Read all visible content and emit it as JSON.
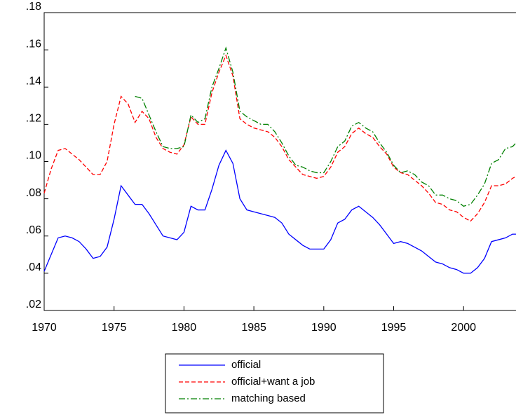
{
  "chart_data": {
    "type": "line",
    "x": [
      1970.0,
      1970.5,
      1971.0,
      1971.5,
      1972.0,
      1972.5,
      1973.0,
      1973.5,
      1974.0,
      1974.5,
      1975.0,
      1975.5,
      1976.0,
      1976.5,
      1977.0,
      1977.5,
      1978.0,
      1978.5,
      1979.0,
      1979.5,
      1980.0,
      1980.5,
      1981.0,
      1981.5,
      1982.0,
      1982.5,
      1983.0,
      1983.5,
      1984.0,
      1984.5,
      1985.0,
      1985.5,
      1986.0,
      1986.5,
      1987.0,
      1987.5,
      1988.0,
      1988.5,
      1989.0,
      1989.5,
      1990.0,
      1990.5,
      1991.0,
      1991.5,
      1992.0,
      1992.5,
      1993.0,
      1993.5,
      1994.0,
      1994.5,
      1995.0,
      1995.5,
      1996.0,
      1996.5,
      1997.0,
      1997.5,
      1998.0,
      1998.5,
      1999.0,
      1999.5,
      2000.0,
      2000.5,
      2001.0,
      2001.5,
      2002.0,
      2002.5,
      2003.0,
      2003.5,
      2003.75
    ],
    "series": [
      {
        "name": "official",
        "color": "#0000ff",
        "dash": "solid",
        "values": [
          0.041,
          0.05,
          0.059,
          0.06,
          0.059,
          0.057,
          0.053,
          0.048,
          0.049,
          0.054,
          0.069,
          0.087,
          0.082,
          0.077,
          0.077,
          0.072,
          0.066,
          0.06,
          0.059,
          0.058,
          0.062,
          0.076,
          0.074,
          0.074,
          0.085,
          0.098,
          0.106,
          0.099,
          0.08,
          0.074,
          0.073,
          0.072,
          0.071,
          0.07,
          0.067,
          0.061,
          0.058,
          0.055,
          0.053,
          0.053,
          0.053,
          0.058,
          0.067,
          0.069,
          0.074,
          0.076,
          0.073,
          0.07,
          0.066,
          0.061,
          0.056,
          0.057,
          0.056,
          0.054,
          0.052,
          0.049,
          0.046,
          0.045,
          0.043,
          0.042,
          0.04,
          0.04,
          0.043,
          0.048,
          0.057,
          0.058,
          0.059,
          0.061,
          0.061
        ]
      },
      {
        "name": "official+want a job",
        "color": "#ff0000",
        "dash": "dashed",
        "values": [
          0.083,
          0.096,
          0.106,
          0.107,
          0.104,
          0.101,
          0.097,
          0.093,
          0.093,
          0.1,
          0.12,
          0.135,
          0.131,
          0.121,
          0.127,
          0.123,
          0.113,
          0.107,
          0.105,
          0.104,
          0.109,
          0.124,
          0.12,
          0.12,
          0.137,
          0.148,
          0.157,
          0.146,
          0.123,
          0.12,
          0.118,
          0.117,
          0.116,
          0.113,
          0.108,
          0.101,
          0.097,
          0.093,
          0.092,
          0.091,
          0.092,
          0.097,
          0.105,
          0.108,
          0.115,
          0.118,
          0.115,
          0.113,
          0.108,
          0.104,
          0.097,
          0.094,
          0.093,
          0.09,
          0.087,
          0.083,
          0.078,
          0.077,
          0.074,
          0.073,
          0.07,
          0.068,
          0.072,
          0.078,
          0.087,
          0.087,
          0.088,
          0.091,
          0.092
        ]
      },
      {
        "name": "matching based",
        "color": "#008000",
        "dash": "dashdot",
        "values": [
          null,
          null,
          null,
          null,
          null,
          null,
          null,
          null,
          null,
          null,
          null,
          null,
          null,
          0.135,
          0.134,
          0.125,
          0.116,
          0.108,
          0.107,
          0.107,
          0.108,
          0.125,
          0.121,
          0.123,
          0.14,
          0.15,
          0.161,
          0.148,
          0.127,
          0.124,
          0.122,
          0.12,
          0.12,
          0.116,
          0.11,
          0.103,
          0.098,
          0.097,
          0.095,
          0.094,
          0.094,
          0.1,
          0.108,
          0.111,
          0.119,
          0.121,
          0.118,
          0.116,
          0.11,
          0.105,
          0.098,
          0.094,
          0.095,
          0.093,
          0.089,
          0.087,
          0.082,
          0.082,
          0.08,
          0.079,
          0.076,
          0.077,
          0.082,
          0.088,
          0.099,
          0.101,
          0.107,
          0.108,
          0.11
        ]
      }
    ],
    "xlim": [
      1970,
      2003.75
    ],
    "xticks": [
      1970,
      1975,
      1980,
      1985,
      1990,
      1995,
      2000
    ],
    "ylim": [
      0.02,
      0.18
    ],
    "yticks": [
      {
        "value": 0.02,
        "label": ".02"
      },
      {
        "value": 0.04,
        "label": ".04"
      },
      {
        "value": 0.06,
        "label": ".06"
      },
      {
        "value": 0.08,
        "label": ".08"
      },
      {
        "value": 0.1,
        "label": ".10"
      },
      {
        "value": 0.12,
        "label": ".12"
      },
      {
        "value": 0.14,
        "label": ".14"
      },
      {
        "value": 0.16,
        "label": ".16"
      },
      {
        "value": 0.18,
        "label": ".18"
      }
    ],
    "grid": false,
    "legend": "bottom"
  }
}
